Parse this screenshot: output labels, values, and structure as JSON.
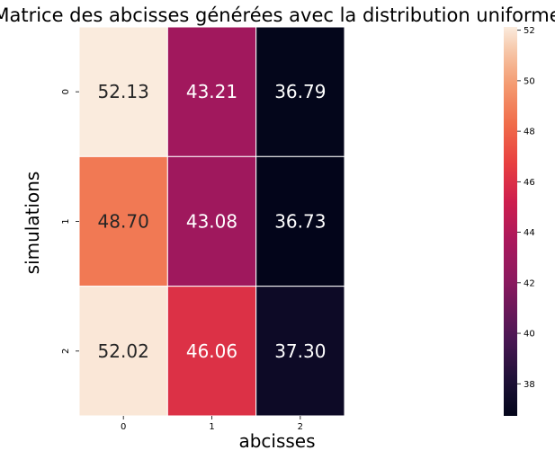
{
  "chart_data": {
    "type": "heatmap",
    "title": "Matrice des abcisses générées avec la distribution uniforme",
    "xlabel": "abcisses",
    "ylabel": "simulations",
    "x_categories": [
      "0",
      "1",
      "2"
    ],
    "y_categories": [
      "0",
      "1",
      "2"
    ],
    "values": [
      [
        52.13,
        43.21,
        36.79
      ],
      [
        48.7,
        43.08,
        36.73
      ],
      [
        52.02,
        46.06,
        37.3
      ]
    ],
    "value_labels": [
      [
        "52.13",
        "43.21",
        "36.79"
      ],
      [
        "48.70",
        "43.08",
        "36.73"
      ],
      [
        "52.02",
        "46.06",
        "37.30"
      ]
    ],
    "colormap": "rocket",
    "colorbar": {
      "range": [
        36.73,
        52.13
      ],
      "ticks": [
        "38",
        "40",
        "42",
        "44",
        "46",
        "48",
        "50",
        "52"
      ]
    },
    "grid": false
  }
}
